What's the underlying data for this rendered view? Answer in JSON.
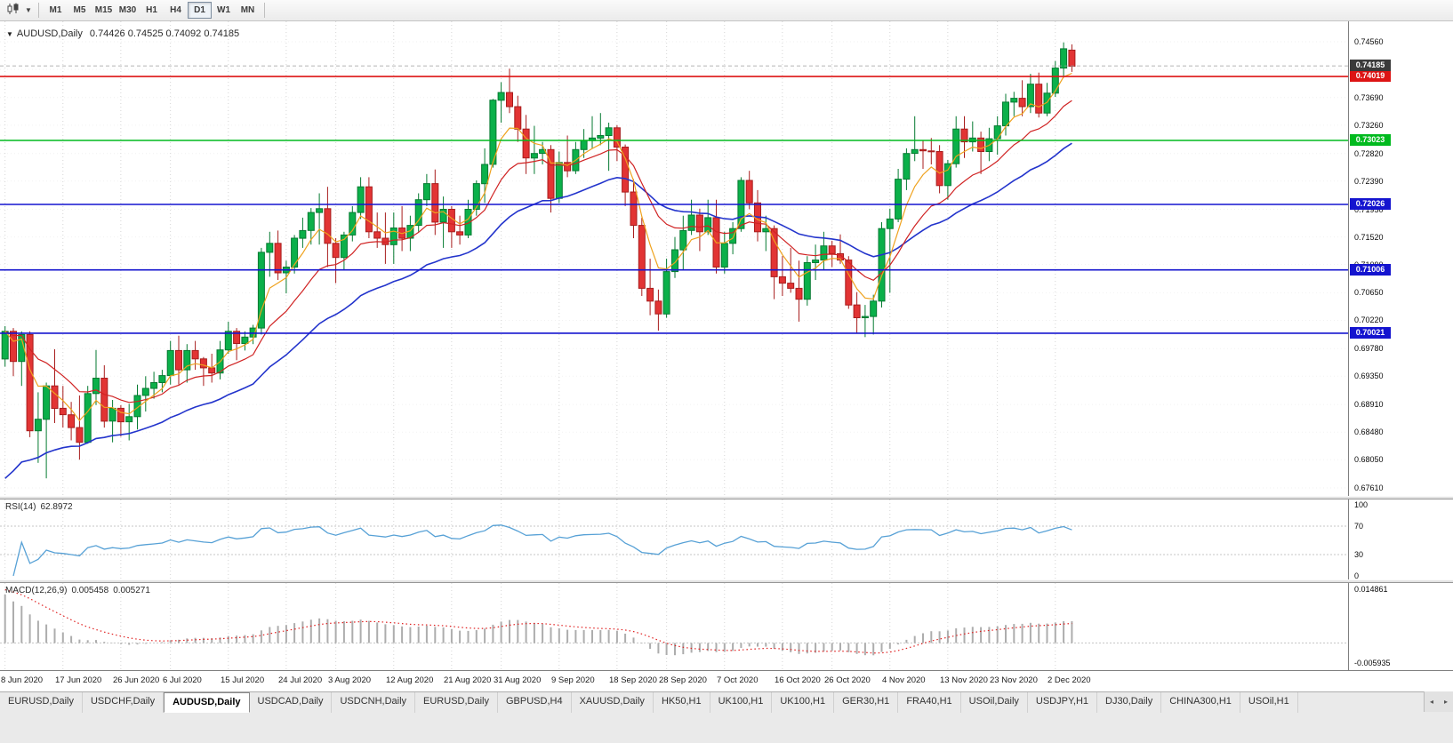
{
  "toolbar": {
    "timeframes": [
      "M1",
      "M5",
      "M15",
      "M30",
      "H1",
      "H4",
      "D1",
      "W1",
      "MN"
    ],
    "active_timeframe": "D1"
  },
  "chart": {
    "title": {
      "one_click": "▼",
      "symbol": "AUDUSD,Daily",
      "ohlc": "0.74426 0.74525 0.74092 0.74185"
    },
    "price_axis": {
      "ticks": [
        "0.74560",
        "0.74130",
        "0.73690",
        "0.73260",
        "0.72820",
        "0.72390",
        "0.71950",
        "0.71520",
        "0.71090",
        "0.70650",
        "0.70220",
        "0.69780",
        "0.69350",
        "0.68910",
        "0.68480",
        "0.68050",
        "0.67610"
      ]
    },
    "current_price": {
      "label": "0.74185",
      "value": 0.74185
    },
    "levels": [
      {
        "label": "0.74019",
        "value": 0.74019,
        "color": "#dd1414"
      },
      {
        "label": "0.73023",
        "value": 0.73023,
        "color": "#00ba1e"
      },
      {
        "label": "0.72026",
        "value": 0.72026,
        "color": "#1414cf"
      },
      {
        "label": "0.71006",
        "value": 0.71006,
        "color": "#1414cf"
      },
      {
        "label": "0.70021",
        "value": 0.70021,
        "color": "#1414cf"
      }
    ],
    "candles": [
      [
        0.6962,
        0.7013,
        0.695,
        0.7005
      ],
      [
        0.7005,
        0.701,
        0.6935,
        0.6958
      ],
      [
        0.6958,
        0.7005,
        0.692,
        0.7
      ],
      [
        0.7,
        0.7005,
        0.684,
        0.685
      ],
      [
        0.685,
        0.691,
        0.68,
        0.6868
      ],
      [
        0.6868,
        0.6925,
        0.6776,
        0.692
      ],
      [
        0.692,
        0.6977,
        0.6862,
        0.6885
      ],
      [
        0.6885,
        0.692,
        0.6855,
        0.6875
      ],
      [
        0.6875,
        0.6895,
        0.6835,
        0.6855
      ],
      [
        0.6855,
        0.6905,
        0.6805,
        0.6832
      ],
      [
        0.6832,
        0.692,
        0.683,
        0.6908
      ],
      [
        0.6908,
        0.6976,
        0.689,
        0.6932
      ],
      [
        0.6932,
        0.6952,
        0.6855,
        0.6865
      ],
      [
        0.6865,
        0.6898,
        0.6832,
        0.6885
      ],
      [
        0.6885,
        0.689,
        0.6841,
        0.6864
      ],
      [
        0.6864,
        0.6892,
        0.6835,
        0.6872
      ],
      [
        0.6872,
        0.6922,
        0.6852,
        0.6905
      ],
      [
        0.6905,
        0.6935,
        0.688,
        0.6916
      ],
      [
        0.6916,
        0.6942,
        0.69,
        0.6925
      ],
      [
        0.6925,
        0.6945,
        0.691,
        0.6936
      ],
      [
        0.6936,
        0.699,
        0.6922,
        0.6975
      ],
      [
        0.6975,
        0.6998,
        0.6922,
        0.6945
      ],
      [
        0.6945,
        0.6985,
        0.6925,
        0.6975
      ],
      [
        0.6975,
        0.699,
        0.6945,
        0.6962
      ],
      [
        0.6962,
        0.6965,
        0.692,
        0.6948
      ],
      [
        0.6948,
        0.697,
        0.6925,
        0.694
      ],
      [
        0.694,
        0.699,
        0.693,
        0.6976
      ],
      [
        0.6976,
        0.702,
        0.697,
        0.7005
      ],
      [
        0.7005,
        0.701,
        0.696,
        0.6986
      ],
      [
        0.6986,
        0.7005,
        0.6975,
        0.6996
      ],
      [
        0.6996,
        0.7015,
        0.6985,
        0.701
      ],
      [
        0.701,
        0.7135,
        0.7,
        0.7128
      ],
      [
        0.7128,
        0.716,
        0.709,
        0.7142
      ],
      [
        0.7142,
        0.7162,
        0.7085,
        0.7096
      ],
      [
        0.7096,
        0.7115,
        0.7064,
        0.7105
      ],
      [
        0.7105,
        0.7155,
        0.7095,
        0.715
      ],
      [
        0.715,
        0.7182,
        0.7135,
        0.7162
      ],
      [
        0.7162,
        0.7197,
        0.714,
        0.719
      ],
      [
        0.719,
        0.722,
        0.714,
        0.7196
      ],
      [
        0.7196,
        0.723,
        0.7105,
        0.7142
      ],
      [
        0.7142,
        0.715,
        0.708,
        0.712
      ],
      [
        0.712,
        0.716,
        0.71,
        0.7155
      ],
      [
        0.7155,
        0.72,
        0.7145,
        0.719
      ],
      [
        0.719,
        0.7245,
        0.718,
        0.723
      ],
      [
        0.723,
        0.7245,
        0.715,
        0.716
      ],
      [
        0.716,
        0.719,
        0.7135,
        0.715
      ],
      [
        0.715,
        0.719,
        0.711,
        0.714
      ],
      [
        0.714,
        0.719,
        0.711,
        0.7166
      ],
      [
        0.7166,
        0.72,
        0.713,
        0.715
      ],
      [
        0.715,
        0.7185,
        0.713,
        0.717
      ],
      [
        0.717,
        0.722,
        0.716,
        0.721
      ],
      [
        0.721,
        0.725,
        0.72,
        0.7235
      ],
      [
        0.7235,
        0.7257,
        0.7155,
        0.7175
      ],
      [
        0.7175,
        0.7215,
        0.7135,
        0.7195
      ],
      [
        0.7195,
        0.72,
        0.7135,
        0.716
      ],
      [
        0.716,
        0.7185,
        0.714,
        0.7155
      ],
      [
        0.7155,
        0.721,
        0.715,
        0.7195
      ],
      [
        0.7195,
        0.724,
        0.7185,
        0.7235
      ],
      [
        0.7235,
        0.729,
        0.7205,
        0.7265
      ],
      [
        0.7265,
        0.7367,
        0.726,
        0.7365
      ],
      [
        0.7365,
        0.7393,
        0.733,
        0.7377
      ],
      [
        0.7377,
        0.7414,
        0.7345,
        0.7355
      ],
      [
        0.7355,
        0.7372,
        0.73,
        0.732
      ],
      [
        0.732,
        0.7342,
        0.725,
        0.7275
      ],
      [
        0.7275,
        0.7325,
        0.725,
        0.7282
      ],
      [
        0.7282,
        0.73,
        0.7265,
        0.7288
      ],
      [
        0.7288,
        0.7295,
        0.719,
        0.7212
      ],
      [
        0.7212,
        0.7285,
        0.7205,
        0.7268
      ],
      [
        0.7268,
        0.731,
        0.7245,
        0.7255
      ],
      [
        0.7255,
        0.73,
        0.725,
        0.7288
      ],
      [
        0.7288,
        0.732,
        0.7275,
        0.7302
      ],
      [
        0.7302,
        0.734,
        0.729,
        0.7306
      ],
      [
        0.7306,
        0.7345,
        0.7295,
        0.731
      ],
      [
        0.731,
        0.733,
        0.7255,
        0.7322
      ],
      [
        0.7322,
        0.7326,
        0.727,
        0.7292
      ],
      [
        0.7292,
        0.7296,
        0.72,
        0.7222
      ],
      [
        0.7222,
        0.7242,
        0.715,
        0.717
      ],
      [
        0.717,
        0.7182,
        0.706,
        0.7072
      ],
      [
        0.7072,
        0.7118,
        0.703,
        0.7052
      ],
      [
        0.7052,
        0.707,
        0.7006,
        0.7032
      ],
      [
        0.7032,
        0.7118,
        0.7026,
        0.7098
      ],
      [
        0.7098,
        0.7152,
        0.7088,
        0.7132
      ],
      [
        0.7132,
        0.7185,
        0.71,
        0.7162
      ],
      [
        0.7162,
        0.721,
        0.7155,
        0.7186
      ],
      [
        0.7186,
        0.7196,
        0.713,
        0.716
      ],
      [
        0.716,
        0.721,
        0.7155,
        0.7182
      ],
      [
        0.7182,
        0.721,
        0.7095,
        0.7105
      ],
      [
        0.7105,
        0.716,
        0.7095,
        0.7142
      ],
      [
        0.7142,
        0.7175,
        0.7125,
        0.7165
      ],
      [
        0.7165,
        0.7245,
        0.716,
        0.724
      ],
      [
        0.724,
        0.7255,
        0.7195,
        0.7205
      ],
      [
        0.7205,
        0.7225,
        0.7145,
        0.716
      ],
      [
        0.716,
        0.7185,
        0.713,
        0.7165
      ],
      [
        0.7165,
        0.717,
        0.7055,
        0.709
      ],
      [
        0.709,
        0.7122,
        0.706,
        0.708
      ],
      [
        0.708,
        0.7135,
        0.7065,
        0.7072
      ],
      [
        0.7072,
        0.7115,
        0.702,
        0.7055
      ],
      [
        0.7055,
        0.7122,
        0.7045,
        0.7112
      ],
      [
        0.7112,
        0.714,
        0.7085,
        0.7116
      ],
      [
        0.7116,
        0.716,
        0.71,
        0.7138
      ],
      [
        0.7138,
        0.7146,
        0.7105,
        0.7126
      ],
      [
        0.7126,
        0.7156,
        0.711,
        0.7116
      ],
      [
        0.7116,
        0.7122,
        0.704,
        0.7046
      ],
      [
        0.7046,
        0.7066,
        0.7002,
        0.7026
      ],
      [
        0.7026,
        0.7046,
        0.6996,
        0.7028
      ],
      [
        0.7028,
        0.7062,
        0.7,
        0.7052
      ],
      [
        0.7052,
        0.7175,
        0.7042,
        0.7165
      ],
      [
        0.7165,
        0.7196,
        0.7065,
        0.718
      ],
      [
        0.718,
        0.7258,
        0.7175,
        0.7242
      ],
      [
        0.7242,
        0.729,
        0.7225,
        0.7282
      ],
      [
        0.7282,
        0.734,
        0.727,
        0.7288
      ],
      [
        0.7288,
        0.7302,
        0.7258,
        0.7286
      ],
      [
        0.7286,
        0.7306,
        0.7265,
        0.7285
      ],
      [
        0.7285,
        0.7295,
        0.722,
        0.7232
      ],
      [
        0.7232,
        0.7272,
        0.721,
        0.7266
      ],
      [
        0.7266,
        0.734,
        0.726,
        0.732
      ],
      [
        0.732,
        0.734,
        0.7275,
        0.73
      ],
      [
        0.73,
        0.7332,
        0.7285,
        0.7306
      ],
      [
        0.7306,
        0.7316,
        0.725,
        0.7285
      ],
      [
        0.7285,
        0.7322,
        0.727,
        0.7305
      ],
      [
        0.7305,
        0.734,
        0.728,
        0.7325
      ],
      [
        0.7325,
        0.7375,
        0.731,
        0.7362
      ],
      [
        0.7362,
        0.7378,
        0.734,
        0.7368
      ],
      [
        0.7368,
        0.7396,
        0.734,
        0.7355
      ],
      [
        0.7355,
        0.7406,
        0.7345,
        0.739
      ],
      [
        0.739,
        0.7408,
        0.7338,
        0.7345
      ],
      [
        0.7345,
        0.7392,
        0.734,
        0.7376
      ],
      [
        0.7376,
        0.7426,
        0.737,
        0.7415
      ],
      [
        0.7415,
        0.7455,
        0.74,
        0.7445
      ],
      [
        0.7443,
        0.7452,
        0.7409,
        0.7418
      ]
    ]
  },
  "rsi": {
    "name": "RSI(14)",
    "value": "62.8972",
    "axis": [
      "100",
      "70",
      "30",
      "0"
    ],
    "level_lines": [
      70,
      30
    ]
  },
  "macd": {
    "name": "MACD(12,26,9)",
    "value_main": "0.005458",
    "value_signal": "0.005271",
    "axis_top": "0.014861",
    "axis_bottom": "-0.005935"
  },
  "time_axis": {
    "labels": [
      {
        "text": "8 Jun 2020",
        "index": 0
      },
      {
        "text": "17 Jun 2020",
        "index": 7
      },
      {
        "text": "26 Jun 2020",
        "index": 14
      },
      {
        "text": "6 Jul 2020",
        "index": 20
      },
      {
        "text": "15 Jul 2020",
        "index": 27
      },
      {
        "text": "24 Jul 2020",
        "index": 34
      },
      {
        "text": "3 Aug 2020",
        "index": 40
      },
      {
        "text": "12 Aug 2020",
        "index": 47
      },
      {
        "text": "21 Aug 2020",
        "index": 54
      },
      {
        "text": "31 Aug 2020",
        "index": 60
      },
      {
        "text": "9 Sep 2020",
        "index": 67
      },
      {
        "text": "18 Sep 2020",
        "index": 74
      },
      {
        "text": "28 Sep 2020",
        "index": 80
      },
      {
        "text": "7 Oct 2020",
        "index": 87
      },
      {
        "text": "16 Oct 2020",
        "index": 94
      },
      {
        "text": "26 Oct 2020",
        "index": 100
      },
      {
        "text": "4 Nov 2020",
        "index": 107
      },
      {
        "text": "13 Nov 2020",
        "index": 114
      },
      {
        "text": "23 Nov 2020",
        "index": 120
      },
      {
        "text": "2 Dec 2020",
        "index": 127
      }
    ]
  },
  "tabs": {
    "items": [
      "EURUSD,Daily",
      "USDCHF,Daily",
      "AUDUSD,Daily",
      "USDCAD,Daily",
      "USDCNH,Daily",
      "EURUSD,Daily",
      "GBPUSD,H4",
      "XAUUSD,Daily",
      "HK50,H1",
      "UK100,H1",
      "UK100,H1",
      "GER30,H1",
      "FRA40,H1",
      "USOil,Daily",
      "USDJPY,H1",
      "DJ30,Daily",
      "CHINA300,H1",
      "USOil,H1"
    ],
    "active_index": 2,
    "scroll_left": "◂",
    "scroll_right": "▸"
  },
  "colors": {
    "bull": "#0bb04a",
    "bull_border": "#057a31",
    "bear": "#e23434",
    "bear_border": "#a81d1d",
    "ma_fast": "#efa21e",
    "ma_mid": "#d02323",
    "ma_slow": "#2334cc",
    "rsi_line": "#57a1d6",
    "macd_hist": "#adadad",
    "macd_signal": "#e02020",
    "badge_current": "#3a3a3a"
  }
}
